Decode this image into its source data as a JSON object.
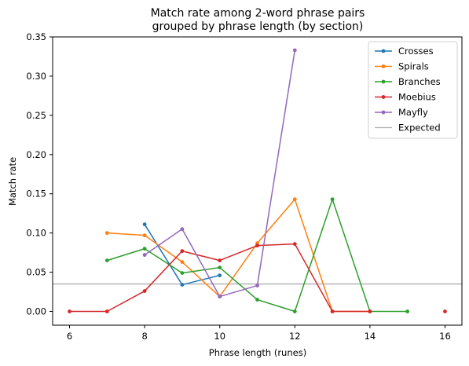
{
  "chart_data": {
    "type": "line",
    "title": [
      "Match rate among 2-word phrase pairs",
      "grouped by phrase length (by section)"
    ],
    "xlabel": "Phrase length (runes)",
    "ylabel": "Match rate",
    "xlim": [
      5.55,
      16.45
    ],
    "ylim": [
      -0.0175,
      0.35
    ],
    "xticks": [
      6,
      8,
      10,
      12,
      14,
      16
    ],
    "yticks": [
      0.0,
      0.05,
      0.1,
      0.15,
      0.2,
      0.25,
      0.3,
      0.35
    ],
    "xtick_labels": [
      "6",
      "8",
      "10",
      "12",
      "14",
      "16"
    ],
    "ytick_labels": [
      "0.00",
      "0.05",
      "0.10",
      "0.15",
      "0.20",
      "0.25",
      "0.30",
      "0.35"
    ],
    "legend_position": "upper right",
    "series": [
      {
        "name": "Crosses",
        "color": "#1f77b4",
        "points": [
          [
            8,
            0.111
          ],
          [
            9,
            0.034
          ],
          [
            10,
            0.046
          ]
        ]
      },
      {
        "name": "Spirals",
        "color": "#ff7f0e",
        "points": [
          [
            7,
            0.1
          ],
          [
            8,
            0.097
          ],
          [
            9,
            0.063
          ],
          [
            10,
            0.019
          ],
          [
            11,
            0.087
          ],
          [
            12,
            0.143
          ],
          [
            13,
            0.0
          ],
          [
            14,
            0.0
          ]
        ]
      },
      {
        "name": "Branches",
        "color": "#2ca02c",
        "points": [
          [
            7,
            0.065
          ],
          [
            8,
            0.08
          ],
          [
            9,
            0.049
          ],
          [
            10,
            0.056
          ],
          [
            11,
            0.015
          ],
          [
            12,
            0.0
          ],
          [
            13,
            0.143
          ],
          [
            14,
            0.0
          ],
          [
            15,
            0.0
          ]
        ]
      },
      {
        "name": "Moebius",
        "color": "#d62728",
        "points": [
          [
            6,
            0.0
          ],
          [
            7,
            0.0
          ],
          [
            8,
            0.026
          ],
          [
            9,
            0.077
          ],
          [
            10,
            0.065
          ],
          [
            11,
            0.084
          ],
          [
            12,
            0.086
          ],
          [
            13,
            0.0
          ],
          [
            14,
            0.0
          ],
          [
            null,
            null
          ],
          [
            16,
            0.0
          ]
        ]
      },
      {
        "name": "Mayfly",
        "color": "#9467bd",
        "points": [
          [
            8,
            0.072
          ],
          [
            9,
            0.105
          ],
          [
            10,
            0.019
          ],
          [
            11,
            0.033
          ],
          [
            12,
            0.333
          ]
        ]
      }
    ],
    "reference_line": {
      "name": "Expected",
      "color": "#b0b0b0",
      "y": 0.035
    }
  }
}
